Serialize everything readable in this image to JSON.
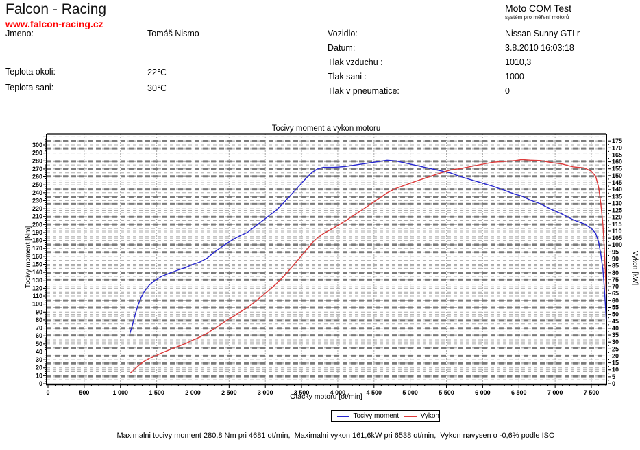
{
  "header": {
    "company": "Falcon - Racing",
    "website": "www.falcon-racing.cz",
    "website_color": "#ff0000",
    "app_title": "Moto COM Test",
    "app_subtitle": "systém pro měření motorů"
  },
  "info": {
    "left": [
      {
        "label": "Jmeno:",
        "value": "Tomáš Nismo"
      },
      {
        "label": "Teplota okoli:",
        "value": "22℃"
      },
      {
        "label": "Teplota sani:",
        "value": "30℃"
      }
    ],
    "right": [
      {
        "label": "Vozidlo:",
        "value": "Nissan Sunny GTI r"
      },
      {
        "label": "Datum:",
        "value": "3.8.2010 16:03:18"
      },
      {
        "label": "Tlak vzduchu :",
        "value": "1010,3"
      },
      {
        "label": "Tlak sani :",
        "value": "1000"
      },
      {
        "label": "Tlak v pneumatice:",
        "value": "0"
      }
    ]
  },
  "chart_data": {
    "type": "line",
    "title": "Tocivy moment a vykon motoru",
    "xlabel": "Otacky motoru [ot/min]",
    "ylabel_left": "Tocivy moment [Nm]",
    "ylabel_right": "Vykon [kW]",
    "xlim": [
      0,
      7710
    ],
    "x_tick_step": 500,
    "x_minor_step": 100,
    "ylim_left": [
      0,
      313
    ],
    "y_left_label_step": 10,
    "y_left_minor_step": 2.5,
    "ylim_right": [
      0,
      179
    ],
    "y_right_label_step": 5,
    "y_right_minor_step": 2.5,
    "grid": "dashed-double",
    "legend_position": "bottom-center",
    "series": [
      {
        "name": "Tocivy moment",
        "axis": "left",
        "color": "#2626cf",
        "points": [
          [
            1130,
            63
          ],
          [
            1160,
            72
          ],
          [
            1200,
            86
          ],
          [
            1240,
            98
          ],
          [
            1280,
            107
          ],
          [
            1330,
            116
          ],
          [
            1400,
            124
          ],
          [
            1480,
            130
          ],
          [
            1570,
            135
          ],
          [
            1680,
            139
          ],
          [
            1800,
            143
          ],
          [
            1900,
            146
          ],
          [
            2000,
            150
          ],
          [
            2100,
            153
          ],
          [
            2200,
            158
          ],
          [
            2320,
            167
          ],
          [
            2430,
            174
          ],
          [
            2550,
            181
          ],
          [
            2650,
            186
          ],
          [
            2750,
            190
          ],
          [
            2850,
            197
          ],
          [
            2950,
            204
          ],
          [
            3050,
            211
          ],
          [
            3150,
            218
          ],
          [
            3250,
            227
          ],
          [
            3350,
            237
          ],
          [
            3450,
            247
          ],
          [
            3550,
            257
          ],
          [
            3650,
            266
          ],
          [
            3720,
            270
          ],
          [
            3800,
            272
          ],
          [
            3950,
            272
          ],
          [
            4100,
            273
          ],
          [
            4250,
            275
          ],
          [
            4400,
            277
          ],
          [
            4550,
            279
          ],
          [
            4681,
            280.8
          ],
          [
            4800,
            280
          ],
          [
            4950,
            277
          ],
          [
            5100,
            274
          ],
          [
            5250,
            271
          ],
          [
            5400,
            268
          ],
          [
            5550,
            265
          ],
          [
            5700,
            260
          ],
          [
            5850,
            256
          ],
          [
            6000,
            252
          ],
          [
            6150,
            248
          ],
          [
            6300,
            243
          ],
          [
            6450,
            238
          ],
          [
            6538,
            236
          ],
          [
            6650,
            231
          ],
          [
            6800,
            226
          ],
          [
            6950,
            219
          ],
          [
            7100,
            213
          ],
          [
            7250,
            206
          ],
          [
            7400,
            201
          ],
          [
            7500,
            195
          ],
          [
            7560,
            189
          ],
          [
            7600,
            178
          ],
          [
            7630,
            163
          ],
          [
            7660,
            143
          ],
          [
            7680,
            120
          ],
          [
            7695,
            97
          ],
          [
            7705,
            80
          ]
        ]
      },
      {
        "name": "Vykon",
        "axis": "right",
        "color": "#dd3a3a",
        "points": [
          [
            1130,
            7.5
          ],
          [
            1160,
            8.7
          ],
          [
            1200,
            10.8
          ],
          [
            1240,
            12.7
          ],
          [
            1280,
            14.3
          ],
          [
            1330,
            16.2
          ],
          [
            1400,
            18.2
          ],
          [
            1480,
            20.1
          ],
          [
            1570,
            22.2
          ],
          [
            1680,
            24.5
          ],
          [
            1800,
            27
          ],
          [
            1900,
            29
          ],
          [
            2000,
            31.4
          ],
          [
            2100,
            33.7
          ],
          [
            2200,
            36.4
          ],
          [
            2320,
            40.6
          ],
          [
            2430,
            44.3
          ],
          [
            2550,
            48.3
          ],
          [
            2650,
            51.6
          ],
          [
            2750,
            54.7
          ],
          [
            2850,
            58.8
          ],
          [
            2950,
            63
          ],
          [
            3050,
            67.4
          ],
          [
            3150,
            71.9
          ],
          [
            3250,
            77.3
          ],
          [
            3350,
            83.1
          ],
          [
            3450,
            89.2
          ],
          [
            3550,
            95.5
          ],
          [
            3650,
            101.7
          ],
          [
            3720,
            105.2
          ],
          [
            3800,
            108.2
          ],
          [
            3950,
            112.5
          ],
          [
            4100,
            117.2
          ],
          [
            4250,
            122.4
          ],
          [
            4400,
            127.6
          ],
          [
            4550,
            132.9
          ],
          [
            4681,
            137.6
          ],
          [
            4800,
            140.8
          ],
          [
            4950,
            143.6
          ],
          [
            5100,
            146.4
          ],
          [
            5250,
            149
          ],
          [
            5400,
            151.6
          ],
          [
            5550,
            154.1
          ],
          [
            5700,
            155.2
          ],
          [
            5850,
            156.8
          ],
          [
            6000,
            158.3
          ],
          [
            6150,
            159.7
          ],
          [
            6300,
            160.3
          ],
          [
            6450,
            160.9
          ],
          [
            6538,
            161.6
          ],
          [
            6650,
            161.2
          ],
          [
            6800,
            160.9
          ],
          [
            6950,
            159.4
          ],
          [
            7100,
            158.4
          ],
          [
            7250,
            156.4
          ],
          [
            7400,
            155.7
          ],
          [
            7500,
            153.2
          ],
          [
            7560,
            149.6
          ],
          [
            7600,
            141.7
          ],
          [
            7630,
            130.2
          ],
          [
            7660,
            114.7
          ],
          [
            7680,
            96.5
          ],
          [
            7695,
            78.2
          ],
          [
            7705,
            64.5
          ]
        ]
      }
    ],
    "annotations": {
      "max_torque": "280,8 Nm pri 4681 ot/min",
      "max_power": "161,6kW pri 6538 ot/min",
      "iso_correction": "-0,6%"
    }
  },
  "footer": {
    "summary": "Maximalni tocivy moment 280,8 Nm pri 4681 ot/min,  Maximalni vykon 161,6kW pri 6538 ot/min,  Vykon navysen o -0,6% podle ISO"
  }
}
